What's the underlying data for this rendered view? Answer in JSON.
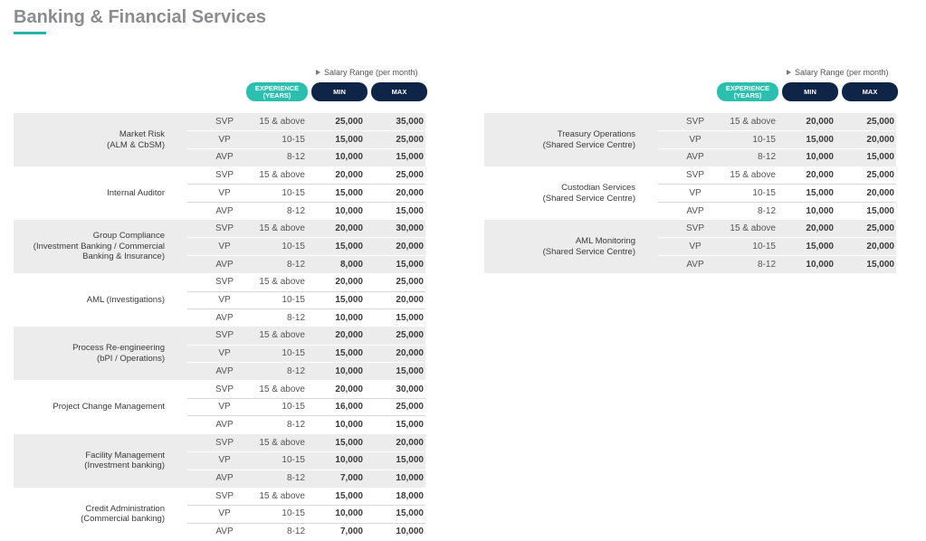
{
  "title": "Banking & Financial Services",
  "tables": [
    {
      "salary_range": "Salary Range (per month)",
      "columns": {
        "experience": [
          "EXPERIENCE",
          "(YEARS)"
        ],
        "min": "MIN",
        "max": "MAX"
      },
      "groups": [
        {
          "name": [
            "Market Risk",
            "(ALM & CbSM)"
          ],
          "rows": [
            [
              "SVP",
              "15 & above",
              "25,000",
              "35,000"
            ],
            [
              "VP",
              "10-15",
              "15,000",
              "25,000"
            ],
            [
              "AVP",
              "8-12",
              "10,000",
              "15,000"
            ]
          ]
        },
        {
          "name": [
            "Internal Auditor"
          ],
          "rows": [
            [
              "SVP",
              "15 & above",
              "20,000",
              "25,000"
            ],
            [
              "VP",
              "10-15",
              "15,000",
              "20,000"
            ],
            [
              "AVP",
              "8-12",
              "10,000",
              "15,000"
            ]
          ]
        },
        {
          "name": [
            "Group Compliance",
            "(Investment Banking / Commercial",
            "Banking & Insurance)"
          ],
          "rows": [
            [
              "SVP",
              "15 & above",
              "20,000",
              "30,000"
            ],
            [
              "VP",
              "10-15",
              "15,000",
              "20,000"
            ],
            [
              "AVP",
              "8-12",
              "8,000",
              "15,000"
            ]
          ]
        },
        {
          "name": [
            "AML (Investigations)"
          ],
          "rows": [
            [
              "SVP",
              "15 & above",
              "20,000",
              "25,000"
            ],
            [
              "VP",
              "10-15",
              "15,000",
              "20,000"
            ],
            [
              "AVP",
              "8-12",
              "10,000",
              "15,000"
            ]
          ]
        },
        {
          "name": [
            "Process Re-engineering",
            "(bPI / Operations)"
          ],
          "rows": [
            [
              "SVP",
              "15 & above",
              "20,000",
              "25,000"
            ],
            [
              "VP",
              "10-15",
              "15,000",
              "20,000"
            ],
            [
              "AVP",
              "8-12",
              "10,000",
              "15,000"
            ]
          ]
        },
        {
          "name": [
            "Project Change Management"
          ],
          "rows": [
            [
              "SVP",
              "15 & above",
              "20,000",
              "30,000"
            ],
            [
              "VP",
              "10-15",
              "16,000",
              "25,000"
            ],
            [
              "AVP",
              "8-12",
              "10,000",
              "15,000"
            ]
          ]
        },
        {
          "name": [
            "Facility Management",
            "(Investment banking)"
          ],
          "rows": [
            [
              "SVP",
              "15 & above",
              "15,000",
              "20,000"
            ],
            [
              "VP",
              "10-15",
              "10,000",
              "15,000"
            ],
            [
              "AVP",
              "8-12",
              "7,000",
              "10,000"
            ]
          ]
        },
        {
          "name": [
            "Credit Administration",
            "(Commercial banking)"
          ],
          "rows": [
            [
              "SVP",
              "15 & above",
              "15,000",
              "18,000"
            ],
            [
              "VP",
              "10-15",
              "10,000",
              "15,000"
            ],
            [
              "AVP",
              "8-12",
              "7,000",
              "10,000"
            ]
          ]
        }
      ]
    },
    {
      "salary_range": "Salary Range (per month)",
      "columns": {
        "experience": [
          "EXPERIENCE",
          "(YEARS)"
        ],
        "min": "MIN",
        "max": "MAX"
      },
      "groups": [
        {
          "name": [
            "Treasury Operations",
            "(Shared Service Centre)"
          ],
          "rows": [
            [
              "SVP",
              "15 & above",
              "20,000",
              "25,000"
            ],
            [
              "VP",
              "10-15",
              "15,000",
              "20,000"
            ],
            [
              "AVP",
              "8-12",
              "10,000",
              "15,000"
            ]
          ]
        },
        {
          "name": [
            "Custodian Services",
            "(Shared Service Centre)"
          ],
          "rows": [
            [
              "SVP",
              "15 & above",
              "20,000",
              "25,000"
            ],
            [
              "VP",
              "10-15",
              "15,000",
              "20,000"
            ],
            [
              "AVP",
              "8-12",
              "10,000",
              "15,000"
            ]
          ]
        },
        {
          "name": [
            "AML Monitoring",
            "(Shared Service Centre)"
          ],
          "rows": [
            [
              "SVP",
              "15 & above",
              "20,000",
              "25,000"
            ],
            [
              "VP",
              "10-15",
              "15,000",
              "20,000"
            ],
            [
              "AVP",
              "8-12",
              "10,000",
              "15,000"
            ]
          ]
        }
      ]
    }
  ]
}
